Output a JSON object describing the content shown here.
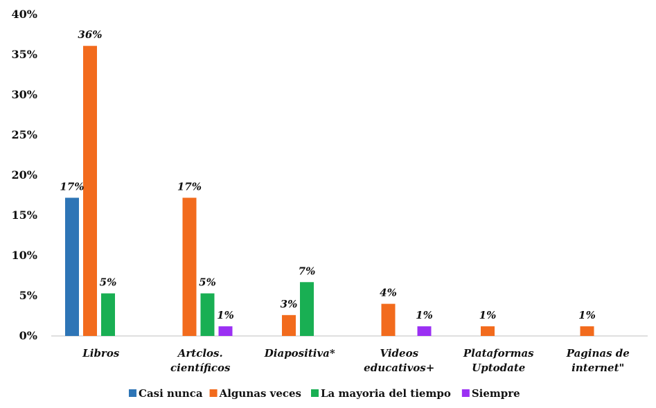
{
  "chart_data": {
    "type": "bar",
    "categories": [
      [
        "Libros"
      ],
      [
        "Artclos.",
        "científicos"
      ],
      [
        "Diapositiva*"
      ],
      [
        "Videos",
        "educativos+"
      ],
      [
        "Plataformas",
        "Uptodate"
      ],
      [
        "Paginas de",
        "internet\""
      ]
    ],
    "series": [
      {
        "name": "Casi nunca",
        "color": "#2E75B6",
        "values": [
          17.2,
          0,
          0,
          0,
          0,
          0
        ],
        "labels": [
          "17%",
          "",
          "",
          "",
          "",
          ""
        ]
      },
      {
        "name": "Algunas veces",
        "color": "#F26B1D",
        "values": [
          36.1,
          17.2,
          2.6,
          4.0,
          1.2,
          1.2
        ],
        "labels": [
          "36%",
          "17%",
          "3%",
          "4%",
          "1%",
          "1%"
        ]
      },
      {
        "name": "La mayoria del tiempo",
        "color": "#19AF53",
        "values": [
          5.3,
          5.3,
          6.7,
          0,
          0,
          0
        ],
        "labels": [
          "5%",
          "5%",
          "7%",
          "",
          "",
          ""
        ]
      },
      {
        "name": "Siempre",
        "color": "#9B30F3",
        "values": [
          0,
          1.2,
          0,
          1.2,
          0,
          0
        ],
        "labels": [
          "",
          "1%",
          "",
          "1%",
          "",
          ""
        ]
      }
    ],
    "y_ticks": [
      "0%",
      "5%",
      "10%",
      "15%",
      "20%",
      "25%",
      "30%",
      "35%",
      "40%"
    ],
    "ylim": [
      0,
      40
    ],
    "grid": false,
    "legend_position": "bottom"
  }
}
